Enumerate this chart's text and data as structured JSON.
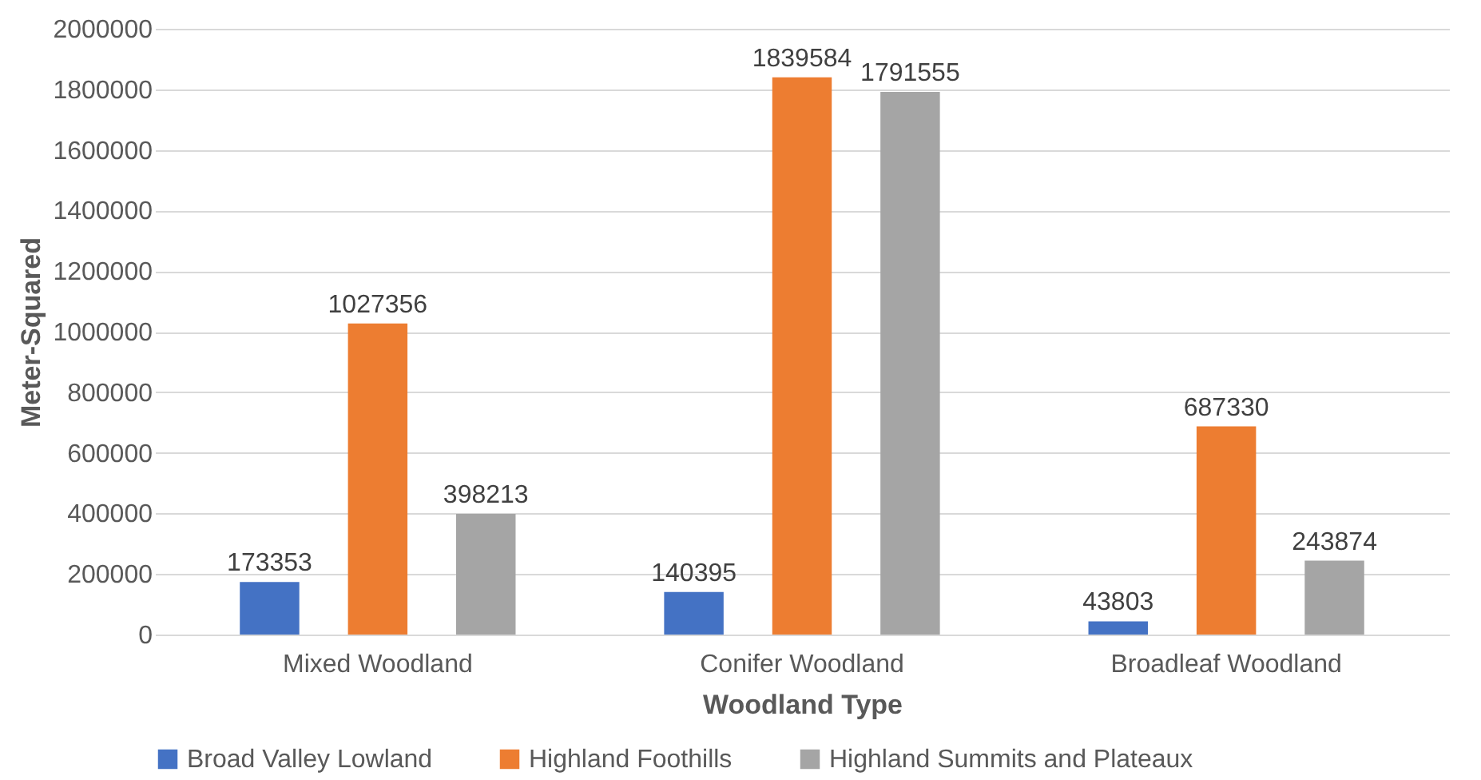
{
  "chart_data": {
    "type": "bar",
    "xlabel": "Woodland Type",
    "ylabel": "Meter-Squared",
    "categories": [
      "Mixed Woodland",
      "Conifer Woodland",
      "Broadleaf Woodland"
    ],
    "series": [
      {
        "name": "Broad Valley Lowland",
        "color": "#4472c4",
        "values": [
          173353,
          140395,
          43803
        ]
      },
      {
        "name": "Highland Foothills",
        "color": "#ed7d31",
        "values": [
          1027356,
          1839584,
          687330
        ]
      },
      {
        "name": "Highland Summits and Plateaux",
        "color": "#a5a5a5",
        "values": [
          398213,
          1791555,
          243874
        ]
      }
    ],
    "ylim": [
      0,
      2000000
    ],
    "yticks": [
      0,
      200000,
      400000,
      600000,
      800000,
      1000000,
      1200000,
      1400000,
      1600000,
      1800000,
      2000000
    ],
    "grid": "y",
    "legend": "bottom",
    "data_labels": true
  }
}
